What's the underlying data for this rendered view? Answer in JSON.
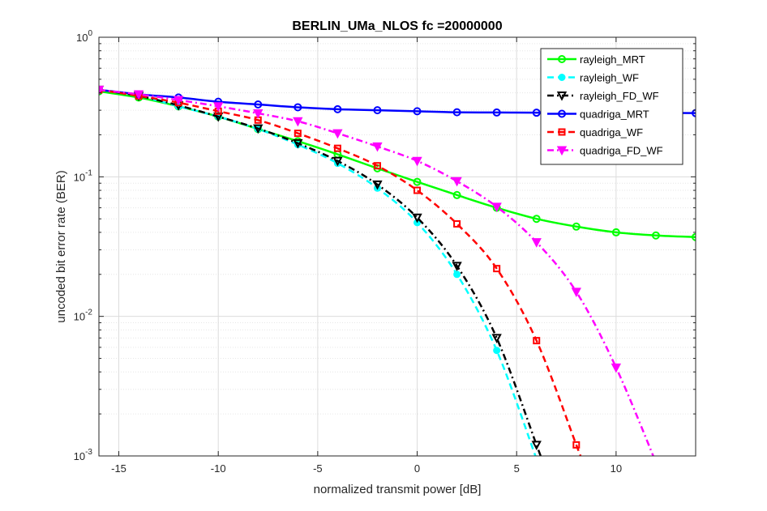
{
  "chart_data": {
    "type": "line",
    "title": "BERLIN_UMa_NLOS fc =20000000",
    "xlabel": "normalized transmit power [dB]",
    "ylabel": "uncoded bit error rate (BER)",
    "xlim": [
      -16,
      14
    ],
    "ylim": [
      0.001,
      1
    ],
    "yscale": "log",
    "grid": true,
    "legend_position": "top-right",
    "xticks": [
      -15,
      -10,
      -5,
      0,
      5,
      10
    ],
    "xtick_labels": [
      "-15",
      "-10",
      "-5",
      "0",
      "5",
      "10"
    ],
    "yticks": [
      {
        "value": 1,
        "base": "10",
        "exp": "0"
      },
      {
        "value": 0.1,
        "base": "10",
        "exp": "-1"
      },
      {
        "value": 0.01,
        "base": "10",
        "exp": "-2"
      },
      {
        "value": 0.001,
        "base": "10",
        "exp": "-3"
      }
    ],
    "x": [
      -16,
      -14,
      -12,
      -10,
      -8,
      -6,
      -4,
      -2,
      0,
      2,
      4,
      6,
      8,
      10,
      12,
      14
    ],
    "series": [
      {
        "name": "rayleigh_MRT",
        "color": "#00ff00",
        "dash": "solid",
        "marker": "circle",
        "values": [
          0.41,
          0.37,
          0.32,
          0.27,
          0.22,
          0.18,
          0.145,
          0.115,
          0.092,
          0.074,
          0.06,
          0.05,
          0.044,
          0.04,
          0.038,
          0.037
        ]
      },
      {
        "name": "rayleigh_WF",
        "color": "#00ffff",
        "dash": "dashed",
        "marker": "dot",
        "values": [
          0.42,
          0.38,
          0.32,
          0.27,
          0.22,
          0.17,
          0.125,
          0.083,
          0.047,
          0.02,
          0.0057,
          0.00095,
          null,
          null,
          null,
          null
        ]
      },
      {
        "name": "rayleigh_FD_WF",
        "color": "#000000",
        "dash": "dashdot",
        "marker": "triangle-down",
        "values": [
          0.42,
          0.38,
          0.325,
          0.27,
          0.222,
          0.174,
          0.13,
          0.088,
          0.051,
          0.023,
          0.007,
          0.0012,
          null,
          null,
          null,
          null
        ]
      },
      {
        "name": "quadriga_MRT",
        "color": "#0000ff",
        "dash": "solid",
        "marker": "circle",
        "values": [
          0.42,
          0.39,
          0.37,
          0.345,
          0.33,
          0.315,
          0.305,
          0.3,
          0.295,
          0.29,
          0.289,
          0.288,
          0.288,
          0.287,
          0.287,
          0.286
        ]
      },
      {
        "name": "quadriga_WF",
        "color": "#ff0000",
        "dash": "dashed",
        "marker": "square",
        "values": [
          0.42,
          0.38,
          0.34,
          0.295,
          0.255,
          0.205,
          0.16,
          0.12,
          0.08,
          0.046,
          0.022,
          0.0067,
          0.0012,
          null,
          null,
          null
        ]
      },
      {
        "name": "quadriga_FD_WF",
        "color": "#ff00ff",
        "dash": "dashdot",
        "marker": "triangle-down",
        "values": [
          0.42,
          0.39,
          0.355,
          0.32,
          0.285,
          0.25,
          0.205,
          0.165,
          0.13,
          0.093,
          0.061,
          0.034,
          0.015,
          0.0043,
          0.0009,
          null
        ]
      }
    ]
  }
}
